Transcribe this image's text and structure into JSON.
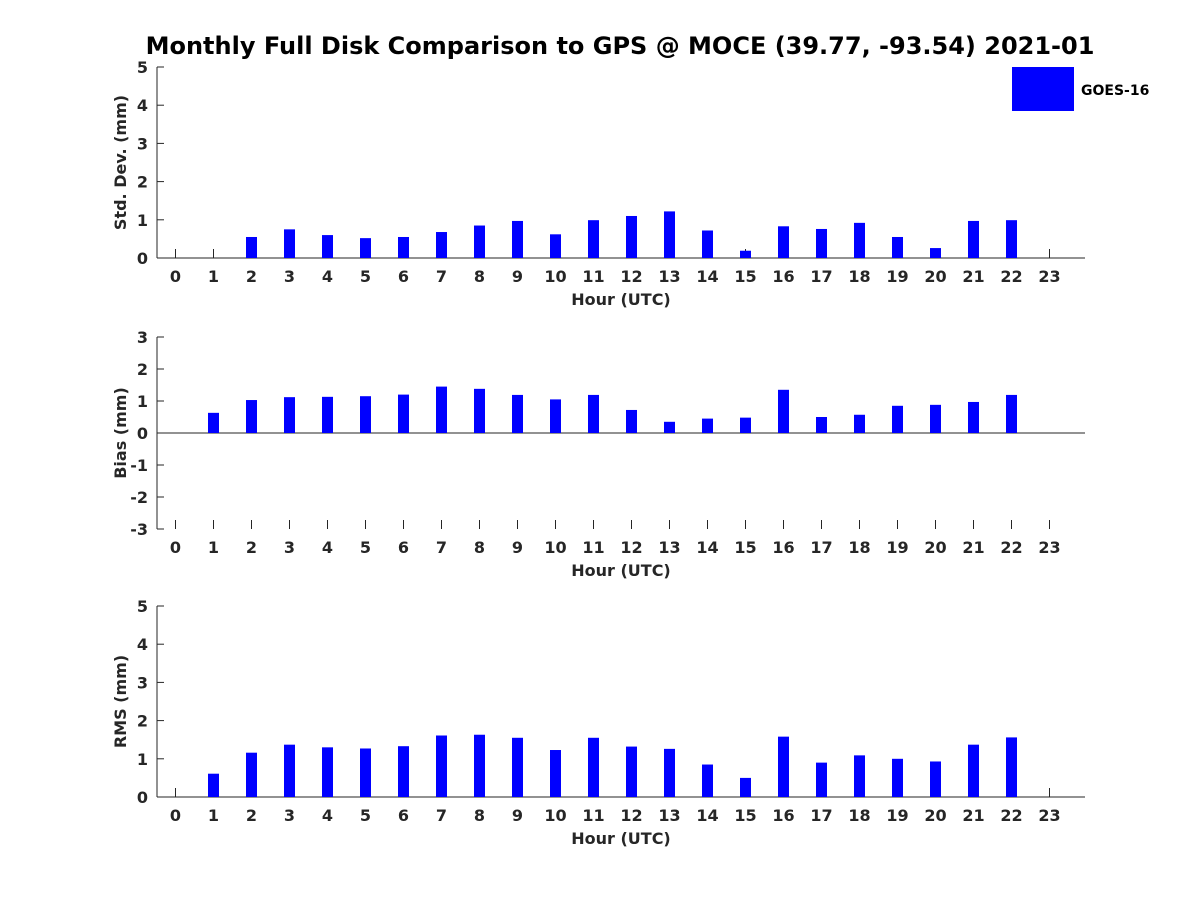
{
  "figure_title": "Monthly Full Disk Comparison to GPS @ MOCE (39.77, -93.54) 2021-01",
  "legend": {
    "label": "GOES-16",
    "color": "#0000ff"
  },
  "chart_data": [
    {
      "type": "bar",
      "title": "",
      "categories": [
        "0",
        "1",
        "2",
        "3",
        "4",
        "5",
        "6",
        "7",
        "8",
        "9",
        "10",
        "11",
        "12",
        "13",
        "14",
        "15",
        "16",
        "17",
        "18",
        "19",
        "20",
        "21",
        "22",
        "23"
      ],
      "values": [
        null,
        null,
        0.55,
        0.75,
        0.6,
        0.52,
        0.55,
        0.68,
        0.85,
        0.97,
        0.62,
        0.99,
        1.1,
        1.22,
        0.72,
        0.19,
        0.83,
        0.76,
        0.92,
        0.55,
        0.26,
        0.97,
        0.99,
        null
      ],
      "series_name": "GOES-16",
      "xlabel": "Hour (UTC)",
      "ylabel": "Std. Dev. (mm)",
      "ylim": [
        0,
        5
      ],
      "yticks": [
        "0",
        "1",
        "2",
        "3",
        "4",
        "5"
      ]
    },
    {
      "type": "bar",
      "title": "",
      "categories": [
        "0",
        "1",
        "2",
        "3",
        "4",
        "5",
        "6",
        "7",
        "8",
        "9",
        "10",
        "11",
        "12",
        "13",
        "14",
        "15",
        "16",
        "17",
        "18",
        "19",
        "20",
        "21",
        "22",
        "23"
      ],
      "values": [
        null,
        0.63,
        1.03,
        1.12,
        1.13,
        1.15,
        1.2,
        1.45,
        1.38,
        1.19,
        1.05,
        1.19,
        0.72,
        0.35,
        0.45,
        0.48,
        1.35,
        0.5,
        0.57,
        0.85,
        0.88,
        0.97,
        1.19,
        null
      ],
      "series_name": "GOES-16",
      "xlabel": "Hour (UTC)",
      "ylabel": "Bias (mm)",
      "ylim": [
        -3,
        3
      ],
      "yticks": [
        "-3",
        "-2",
        "-1",
        "0",
        "1",
        "2",
        "3"
      ]
    },
    {
      "type": "bar",
      "title": "",
      "categories": [
        "0",
        "1",
        "2",
        "3",
        "4",
        "5",
        "6",
        "7",
        "8",
        "9",
        "10",
        "11",
        "12",
        "13",
        "14",
        "15",
        "16",
        "17",
        "18",
        "19",
        "20",
        "21",
        "22",
        "23"
      ],
      "values": [
        null,
        0.61,
        1.16,
        1.37,
        1.3,
        1.27,
        1.33,
        1.61,
        1.63,
        1.55,
        1.23,
        1.55,
        1.32,
        1.26,
        0.85,
        0.5,
        1.58,
        0.9,
        1.09,
        1.0,
        0.93,
        1.37,
        1.56,
        null
      ],
      "series_name": "GOES-16",
      "xlabel": "Hour (UTC)",
      "ylabel": "RMS (mm)",
      "ylim": [
        0,
        5
      ],
      "yticks": [
        "0",
        "1",
        "2",
        "3",
        "4",
        "5"
      ]
    }
  ]
}
